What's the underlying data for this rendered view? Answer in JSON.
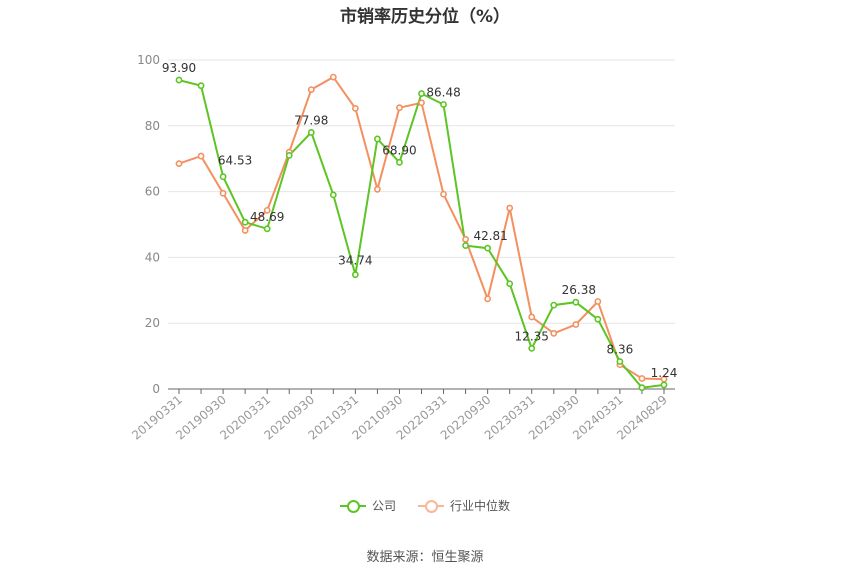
{
  "chart_data": {
    "type": "line",
    "title": "市销率历史分位（%）",
    "ylim": [
      0,
      100
    ],
    "yticks": [
      0,
      20,
      40,
      60,
      80,
      100
    ],
    "x": [
      "20190331",
      "20190630",
      "20190930",
      "20191231",
      "20200331",
      "20200630",
      "20200930",
      "20201231",
      "20210331",
      "20210630",
      "20210930",
      "20211231",
      "20220331",
      "20220630",
      "20220930",
      "20221231",
      "20230331",
      "20230630",
      "20230930",
      "20231231",
      "20240331",
      "20240630",
      "20240829"
    ],
    "x_tick_labels": [
      "20190331",
      "20190930",
      "20200331",
      "20200930",
      "20210331",
      "20210930",
      "20220331",
      "20220930",
      "20230331",
      "20230930",
      "20240331",
      "20240829"
    ],
    "series": [
      {
        "name": "公司",
        "color": "#5cc524",
        "values": [
          93.9,
          92.2,
          64.53,
          50.7,
          48.69,
          71.0,
          77.98,
          59.0,
          34.74,
          76.0,
          68.9,
          89.8,
          86.48,
          43.6,
          42.81,
          32.0,
          12.35,
          25.5,
          26.38,
          21.2,
          8.36,
          0.4,
          1.24
        ],
        "labels": {
          "0": "93.90",
          "2": "64.53",
          "4": "48.69",
          "6": "77.98",
          "8": "34.74",
          "10": "68.90",
          "12": "86.48",
          "14": "42.81",
          "16": "12.35",
          "18": "26.38",
          "20": "8.36",
          "22": "1.24"
        }
      },
      {
        "name": "行业中位数",
        "color": "#f4905f",
        "values": [
          68.5,
          70.8,
          59.5,
          48.2,
          54.3,
          72.0,
          91.0,
          94.8,
          85.3,
          60.7,
          85.5,
          87.0,
          59.2,
          45.5,
          27.4,
          55.0,
          21.9,
          16.9,
          19.6,
          26.6,
          7.4,
          3.2,
          3.0
        ]
      }
    ],
    "grid": true,
    "legend": "bottom-center"
  },
  "source": "数据来源：恒生聚源"
}
